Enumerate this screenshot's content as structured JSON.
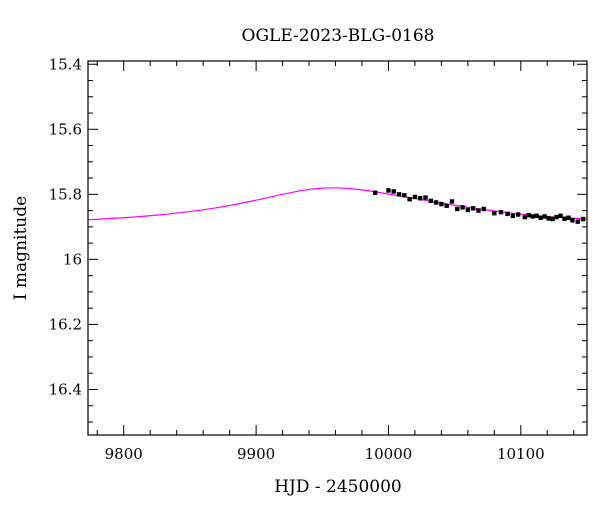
{
  "chart_data": {
    "type": "scatter",
    "title": "OGLE-2023-BLG-0168",
    "xlabel": "HJD - 2450000",
    "ylabel": "I magnitude",
    "xlim": [
      9773,
      10150
    ],
    "ylim": [
      16.54,
      15.39
    ],
    "y_inverted": true,
    "x_ticks": [
      9800,
      9900,
      10000,
      10100
    ],
    "x_tick_labels": [
      "9800",
      "9900",
      "10000",
      "10100"
    ],
    "y_ticks": [
      15.4,
      15.6,
      15.8,
      16.0,
      16.2,
      16.4
    ],
    "y_tick_labels": [
      "15.4",
      "15.6",
      "15.8",
      "16",
      "16.2",
      "16.4"
    ],
    "grid": false,
    "legend": "none",
    "colors": {
      "model": "#ff00ff",
      "points": "#000000",
      "frame": "#000000"
    },
    "series": [
      {
        "kind": "line",
        "values_x": [
          9773,
          9800,
          9825,
          9850,
          9875,
          9900,
          9920,
          9935,
          9950,
          9960,
          9970,
          9985,
          10000,
          10020,
          10040,
          10060,
          10080,
          10100,
          10120,
          10150
        ],
        "values_y": [
          15.878,
          15.872,
          15.864,
          15.853,
          15.838,
          15.818,
          15.8,
          15.788,
          15.781,
          15.78,
          15.782,
          15.789,
          15.799,
          15.813,
          15.827,
          15.84,
          15.851,
          15.861,
          15.868,
          15.876
        ]
      },
      {
        "kind": "points",
        "x": [
          9990,
          10000,
          10004,
          10008,
          10012,
          10016,
          10020,
          10024,
          10028,
          10032,
          10036,
          10040,
          10044,
          10048,
          10052,
          10056,
          10060,
          10064,
          10068,
          10072,
          10080,
          10085,
          10090,
          10094,
          10098,
          10103,
          10106,
          10109,
          10112,
          10115,
          10118,
          10121,
          10124,
          10127,
          10130,
          10133,
          10136,
          10139,
          10143,
          10147
        ],
        "y": [
          15.795,
          15.788,
          15.791,
          15.8,
          15.803,
          15.815,
          15.808,
          15.812,
          15.81,
          15.82,
          15.825,
          15.83,
          15.835,
          15.822,
          15.845,
          15.84,
          15.848,
          15.843,
          15.85,
          15.845,
          15.858,
          15.855,
          15.86,
          15.866,
          15.862,
          15.87,
          15.864,
          15.868,
          15.866,
          15.872,
          15.868,
          15.874,
          15.876,
          15.87,
          15.866,
          15.875,
          15.872,
          15.88,
          15.884,
          15.876
        ],
        "err": [
          0.006,
          0.006,
          0.006,
          0.006,
          0.006,
          0.006,
          0.006,
          0.006,
          0.006,
          0.006,
          0.006,
          0.006,
          0.006,
          0.006,
          0.006,
          0.006,
          0.006,
          0.006,
          0.006,
          0.006,
          0.006,
          0.006,
          0.006,
          0.006,
          0.006,
          0.006,
          0.006,
          0.006,
          0.006,
          0.006,
          0.006,
          0.006,
          0.006,
          0.006,
          0.006,
          0.006,
          0.006,
          0.006,
          0.006,
          0.006
        ]
      }
    ]
  }
}
